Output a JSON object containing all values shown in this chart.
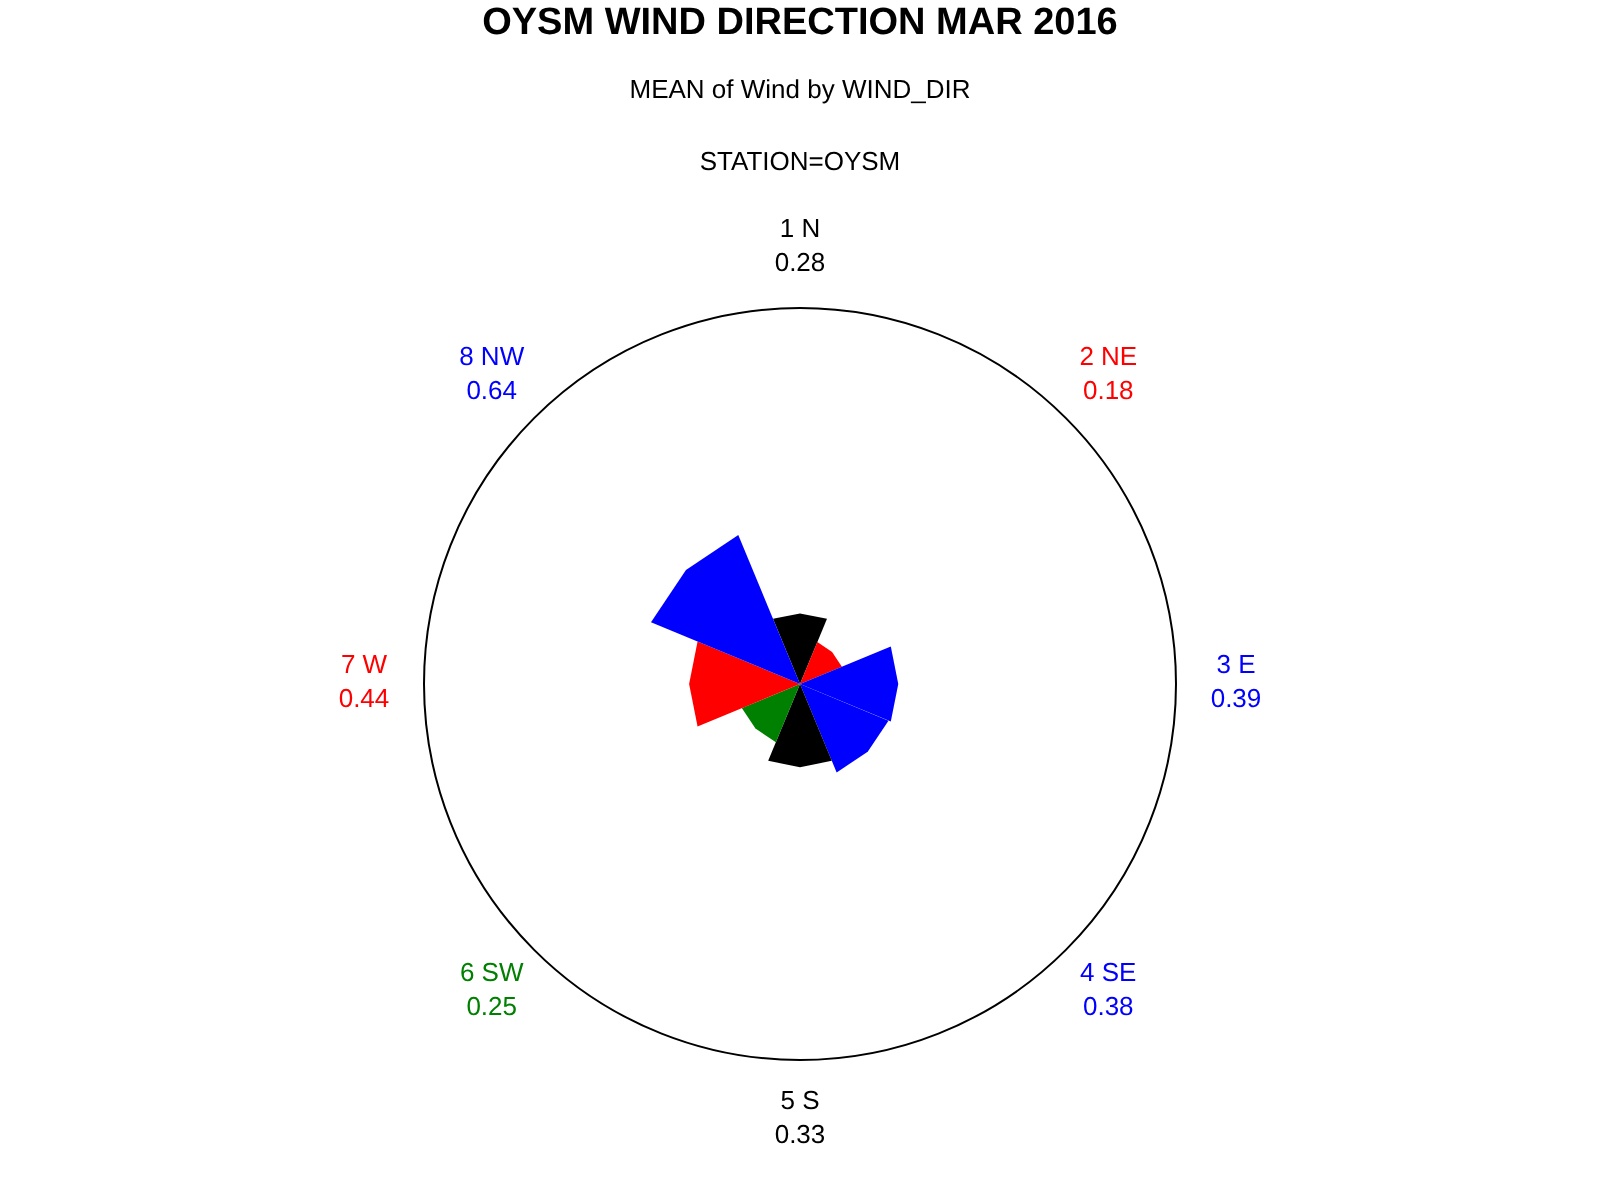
{
  "chart_data": {
    "type": "other",
    "title": "OYSM WIND DIRECTION MAR 2016",
    "subtitle": "MEAN of Wind by WIND_DIR",
    "annotations": [
      "STATION=OYSM"
    ],
    "categories": [
      "1 N",
      "2 NE",
      "3 E",
      "4 SE",
      "5 S",
      "6 SW",
      "7 W",
      "8 NW"
    ],
    "values": [
      0.28,
      0.18,
      0.39,
      0.38,
      0.33,
      0.25,
      0.44,
      0.64
    ],
    "colors": [
      "#000000",
      "#ff0000",
      "#0000ff",
      "#0000ff",
      "#000000",
      "#008000",
      "#ff0000",
      "#0000ff"
    ],
    "data_labels": true
  }
}
